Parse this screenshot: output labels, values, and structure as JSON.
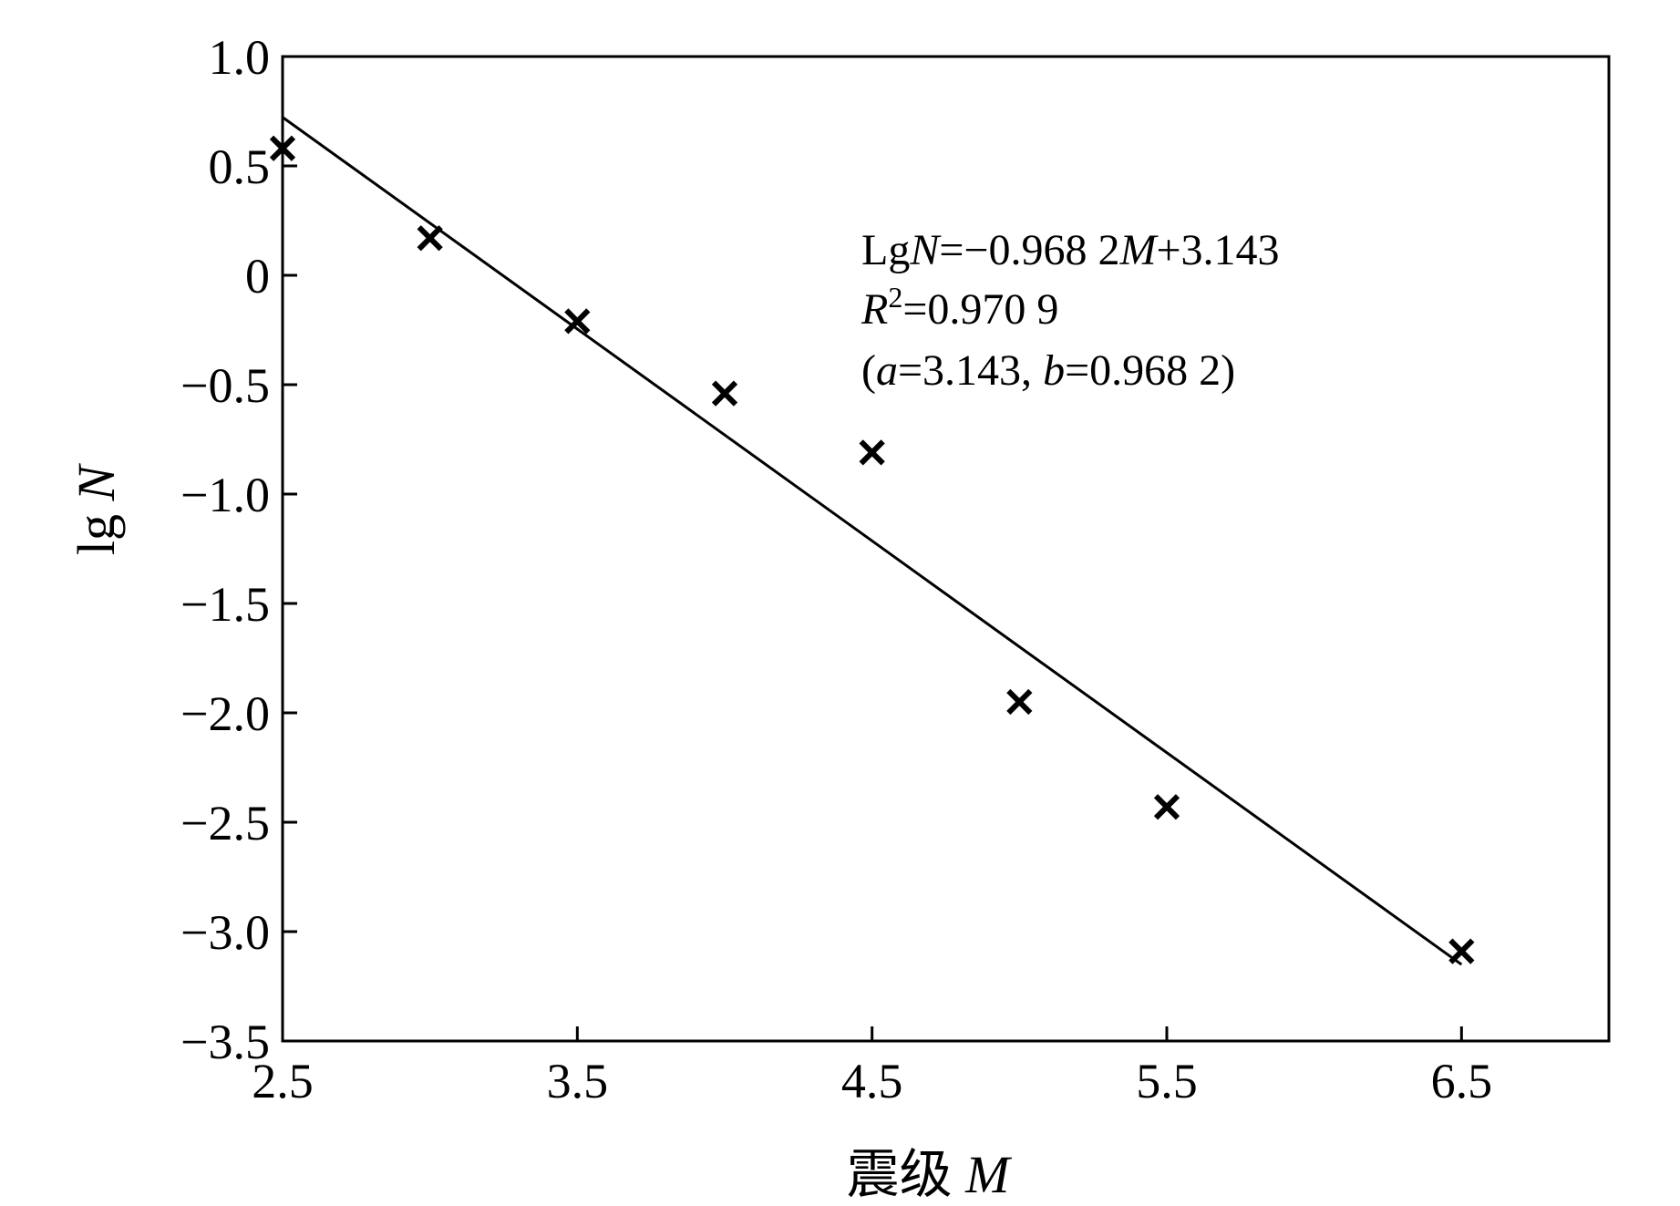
{
  "chart_data": {
    "type": "scatter",
    "title": "",
    "xlabel": "震级 M",
    "xlabel_parts": {
      "prefix": "震级 ",
      "var": "M"
    },
    "ylabel": "lg N",
    "ylabel_parts": {
      "prefix": "lg ",
      "var": "N"
    },
    "xlim": [
      2.5,
      7.0
    ],
    "ylim": [
      -3.5,
      1.0
    ],
    "x_ticks": [
      "2.5",
      "3.5",
      "4.5",
      "5.5",
      "6.5"
    ],
    "x_tick_values": [
      2.5,
      3.5,
      4.5,
      5.5,
      6.5
    ],
    "y_ticks": [
      "1.0",
      "0.5",
      "0",
      "−0.5",
      "−1.0",
      "−1.5",
      "−2.0",
      "−2.5",
      "−3.0",
      "−3.5"
    ],
    "y_tick_values": [
      1.0,
      0.5,
      0,
      -0.5,
      -1.0,
      -1.5,
      -2.0,
      -2.5,
      -3.0,
      -3.5
    ],
    "grid": false,
    "points": [
      {
        "x": 2.5,
        "y": 0.58
      },
      {
        "x": 3.0,
        "y": 0.17
      },
      {
        "x": 3.5,
        "y": -0.21
      },
      {
        "x": 4.0,
        "y": -0.54
      },
      {
        "x": 4.5,
        "y": -0.81
      },
      {
        "x": 5.0,
        "y": -1.95
      },
      {
        "x": 5.5,
        "y": -2.43
      },
      {
        "x": 6.5,
        "y": -3.09
      }
    ],
    "fit": {
      "slope": -0.9682,
      "intercept": 3.143,
      "x_range": [
        2.5,
        6.5
      ]
    },
    "annotations": {
      "equation": {
        "a": "Lg",
        "b": "N",
        "c": "=−0.968 2",
        "d": "M",
        "e": "+3.143"
      },
      "r2": {
        "a": "R",
        "b": "2",
        "c": "=0.970 9"
      },
      "params": {
        "a": "(",
        "b": "a",
        "c": "=3.143, ",
        "d": "b",
        "e": "=0.968 2)"
      }
    },
    "colors": {
      "marks": "#000000",
      "line": "#000000",
      "background": "#ffffff"
    }
  }
}
